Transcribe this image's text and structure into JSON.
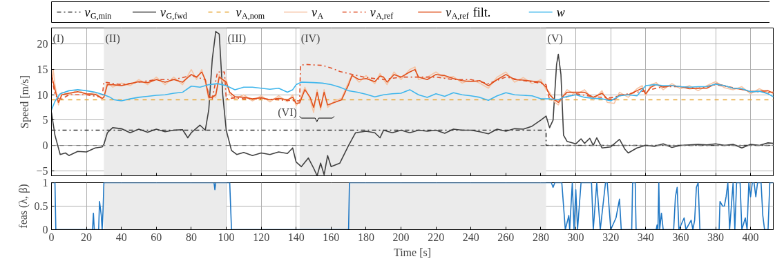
{
  "chart_data": [
    {
      "type": "line",
      "ylabel": "Speed [m/s]",
      "xlim": [
        0,
        413
      ],
      "ylim": [
        -6,
        23.2
      ],
      "xticks": [
        0,
        20,
        40,
        60,
        80,
        100,
        120,
        140,
        160,
        180,
        200,
        220,
        240,
        260,
        280,
        300,
        320,
        340,
        360,
        380,
        400
      ],
      "yticks": [
        -5,
        0,
        5,
        10,
        15,
        20
      ],
      "tick_labels": "y",
      "grid": true,
      "legend": "top",
      "bands": [
        {
          "axis": "x",
          "from": 30,
          "to": 100,
          "color": "#ebebeb",
          "label": "(II)"
        },
        {
          "axis": "x",
          "from": 142,
          "to": 283,
          "color": "#ebebeb",
          "label": "(IV)"
        }
      ],
      "ref_lines": [
        {
          "axis": "y",
          "value": 0,
          "color": "#777777",
          "line_style": "dashed"
        }
      ],
      "annotations": [
        "(I)",
        "(III)",
        "(V)",
        "(VI)"
      ],
      "series": [
        {
          "name": "v$_{G,min}$",
          "color": "#333333",
          "line_style": "dashdot",
          "x": [
            0,
            283,
            283,
            413
          ],
          "values": [
            3,
            3,
            0,
            0
          ]
        },
        {
          "name": "v$_{G,fwd}$",
          "color": "#404040",
          "line_style": "solid",
          "x": [
            0,
            2,
            5,
            8,
            10,
            15,
            20,
            25,
            29,
            30,
            32,
            35,
            40,
            45,
            50,
            55,
            60,
            65,
            70,
            75,
            78,
            80,
            85,
            88,
            90,
            92,
            94,
            96,
            98,
            100,
            103,
            106,
            110,
            115,
            120,
            125,
            130,
            135,
            138,
            140,
            143,
            147,
            150,
            152,
            154,
            156,
            158,
            160,
            165,
            170,
            174,
            180,
            185,
            188,
            190,
            195,
            200,
            205,
            210,
            215,
            220,
            225,
            230,
            235,
            240,
            245,
            250,
            255,
            260,
            265,
            270,
            275,
            280,
            283,
            285,
            287,
            289,
            290,
            291.5,
            293,
            295,
            300,
            303,
            305,
            308,
            310,
            312,
            315,
            320,
            325,
            328,
            330,
            335,
            340,
            345,
            350,
            355,
            360,
            365,
            370,
            375,
            380,
            385,
            390,
            395,
            400,
            405,
            410,
            413
          ],
          "values": [
            6.5,
            2,
            -1.8,
            -1.5,
            -2,
            -1.2,
            -1.3,
            -0.5,
            -0.3,
            0.2,
            2.5,
            3.5,
            3.3,
            2.5,
            3.2,
            2.6,
            3.2,
            2.7,
            3,
            3.1,
            1.5,
            2.5,
            4,
            3,
            7,
            17,
            22.5,
            22,
            10,
            3,
            -1,
            -1.8,
            -1.4,
            -2,
            -1.5,
            -1.8,
            -1.3,
            -1.6,
            -0.5,
            -3.3,
            -4.2,
            -2.5,
            -4.5,
            -6,
            -3.5,
            -5.8,
            -2,
            -4.2,
            -3.5,
            0,
            2.5,
            2.8,
            2.5,
            1.5,
            3,
            2.5,
            3,
            2.5,
            3,
            2.8,
            3,
            2.4,
            3.2,
            3,
            3,
            2.7,
            2.3,
            3.2,
            2.8,
            3.3,
            3.2,
            3.8,
            5,
            5.8,
            3.5,
            5,
            16,
            18,
            14,
            2,
            0.8,
            0.3,
            1.3,
            0.4,
            1.4,
            0,
            1.5,
            -0.5,
            -0.3,
            1.2,
            -0.7,
            -1.5,
            -0.5,
            0,
            -0.2,
            0.3,
            -0.4,
            0,
            0.1,
            0.2,
            0.1,
            0.3,
            0,
            0.2,
            -0.5,
            0.2,
            0,
            0.5,
            0.4
          ]
        },
        {
          "name": "v$_{A,nom}$",
          "color": "#e8a838",
          "line_style": "dashed",
          "x": [
            0,
            413
          ],
          "values": [
            9,
            9
          ]
        },
        {
          "name": "v$_{A}$",
          "color": "#f6c4a4",
          "line_style": "solid",
          "x": [
            0,
            1,
            2,
            4,
            6,
            10,
            15,
            20,
            25,
            29,
            30,
            32,
            35,
            40,
            45,
            50,
            55,
            60,
            65,
            70,
            75,
            80,
            83,
            86,
            88,
            90,
            92,
            94,
            96,
            98,
            100,
            102,
            105,
            110,
            115,
            120,
            125,
            130,
            135,
            138,
            140,
            142,
            145,
            148,
            150,
            152,
            154,
            156,
            158,
            162,
            166,
            170,
            172,
            176,
            180,
            185,
            188,
            190,
            192,
            196,
            200,
            205,
            208,
            210,
            215,
            220,
            225,
            230,
            235,
            240,
            245,
            250,
            255,
            260,
            265,
            270,
            275,
            280,
            283,
            285,
            288,
            290,
            293,
            295,
            300,
            305,
            310,
            315,
            318,
            322,
            325,
            330,
            335,
            338,
            340,
            343,
            346,
            350,
            355,
            360,
            365,
            370,
            375,
            380,
            385,
            390,
            395,
            400,
            405,
            410,
            413
          ],
          "values": [
            13,
            15,
            12,
            8,
            10.5,
            10,
            11,
            10,
            10.5,
            9,
            9.8,
            12.5,
            11.5,
            12.3,
            11.8,
            13,
            12,
            13.5,
            12,
            13.5,
            12,
            15,
            13,
            15,
            12.5,
            9,
            9.8,
            9.5,
            14,
            12.5,
            13,
            10,
            9.2,
            10,
            8.8,
            9.8,
            8.6,
            9.8,
            8.6,
            10,
            7.8,
            8.9,
            11.5,
            9,
            6.5,
            11,
            7,
            11,
            7.5,
            8.8,
            9.3,
            12.5,
            14,
            12.5,
            13.8,
            12.2,
            14.2,
            13,
            12,
            14.5,
            13,
            15,
            15.5,
            13,
            13.5,
            14.5,
            13.3,
            13.6,
            12.3,
            13,
            12.3,
            11.3,
            13.5,
            14.5,
            12.5,
            13.4,
            12.2,
            13,
            11,
            10.5,
            8.5,
            8,
            10,
            11,
            10,
            11,
            9,
            10.8,
            8.5,
            8.3,
            10.5,
            9.5,
            11.2,
            11.8,
            9.8,
            12,
            12.4,
            11,
            12.2,
            11.2,
            11.8,
            10.8,
            11.8,
            12.6,
            11.4,
            11,
            11.6,
            10.2,
            11.2,
            10.4,
            10.6
          ]
        },
        {
          "name": "v$_{A,ref}$",
          "color": "#e0502a",
          "line_style": "dashdot",
          "x": [
            0,
            2,
            5,
            10,
            20,
            29,
            30,
            40,
            50,
            60,
            70,
            80,
            88,
            90,
            92,
            95,
            99,
            100,
            105,
            110,
            120,
            130,
            140,
            142,
            142.5,
            145,
            155,
            160,
            165,
            170,
            175,
            180,
            190,
            200,
            210,
            220,
            230,
            240,
            250,
            260,
            270,
            280,
            283,
            285,
            290,
            300,
            310,
            320,
            330,
            340,
            350,
            360,
            370,
            380,
            390,
            400,
            413
          ],
          "values": [
            14,
            10,
            9,
            10,
            10,
            9.5,
            12.5,
            12,
            12.5,
            13,
            13,
            13.8,
            13,
            10,
            9.2,
            14.5,
            14.5,
            9.2,
            9.4,
            9.2,
            9.2,
            9,
            8.8,
            8.8,
            15.8,
            16,
            15.8,
            15.3,
            14.6,
            14.2,
            13.8,
            13.4,
            13,
            13.5,
            13.5,
            13.5,
            13,
            13,
            12.2,
            13.5,
            12.8,
            12.3,
            12,
            9,
            9,
            10.2,
            9.6,
            9.4,
            10.2,
            10.8,
            11.6,
            11.6,
            11.3,
            12,
            11.4,
            10.7,
            10.4
          ]
        },
        {
          "name": "v$_{A,ref}$ filt.",
          "color": "#e0501c",
          "line_style": "solid",
          "x": [
            0,
            2,
            4,
            6,
            10,
            15,
            20,
            25,
            29,
            30,
            32,
            35,
            40,
            45,
            50,
            55,
            60,
            65,
            70,
            75,
            80,
            83,
            86,
            88,
            90,
            92,
            94,
            96,
            98,
            100,
            102,
            105,
            110,
            115,
            120,
            125,
            130,
            135,
            138,
            140,
            142,
            145,
            148,
            150,
            152,
            154,
            156,
            158,
            162,
            166,
            170,
            172,
            176,
            180,
            185,
            188,
            190,
            192,
            196,
            200,
            205,
            208,
            210,
            215,
            220,
            225,
            230,
            235,
            240,
            245,
            250,
            255,
            260,
            265,
            270,
            275,
            280,
            283,
            285,
            288,
            290,
            293,
            295,
            300,
            305,
            310,
            315,
            318,
            322,
            325,
            330,
            335,
            338,
            340,
            343,
            346,
            350,
            355,
            360,
            365,
            370,
            375,
            380,
            385,
            390,
            395,
            400,
            405,
            410,
            413
          ],
          "values": [
            14,
            11,
            8.5,
            10,
            10.3,
            10.6,
            10.2,
            10.1,
            9.3,
            9.5,
            12,
            12,
            11.8,
            12.2,
            12.6,
            12.4,
            13,
            12.5,
            13,
            12.5,
            14,
            13.5,
            14.5,
            13,
            9.5,
            9.5,
            10,
            13.5,
            13,
            12.5,
            10.5,
            9.6,
            9.5,
            9.2,
            9.4,
            9,
            9.3,
            9,
            9.5,
            8.3,
            8.4,
            11,
            9.5,
            7.5,
            10.5,
            7.5,
            10.5,
            8,
            8.5,
            9,
            12,
            13.8,
            13,
            13.2,
            12.6,
            13.7,
            13.5,
            12.5,
            14,
            13.5,
            14.5,
            15,
            13.5,
            13,
            14,
            13.8,
            13.2,
            12.8,
            12.6,
            12.8,
            11.8,
            13,
            14,
            13,
            12.9,
            12.7,
            12.5,
            11.5,
            10,
            9,
            8.5,
            9.8,
            10.5,
            10.5,
            10.5,
            9.5,
            10.3,
            9.2,
            9,
            10,
            10,
            10.8,
            11.3,
            10.2,
            11.5,
            12,
            11.5,
            11.8,
            11.6,
            11.2,
            11.3,
            11.3,
            12.2,
            11.8,
            11.3,
            11.1,
            10.6,
            10.7,
            10.8,
            10.3
          ]
        },
        {
          "name": "w",
          "color": "#3fb6ec",
          "line_style": "solid",
          "x": [
            0,
            2,
            5,
            10,
            15,
            20,
            25,
            30,
            33,
            36,
            40,
            45,
            50,
            55,
            60,
            65,
            70,
            75,
            80,
            85,
            90,
            95,
            100,
            105,
            110,
            115,
            120,
            125,
            130,
            135,
            138,
            140,
            143,
            150,
            155,
            160,
            165,
            170,
            175,
            180,
            185,
            190,
            195,
            200,
            205,
            210,
            215,
            220,
            225,
            230,
            235,
            240,
            245,
            250,
            255,
            260,
            265,
            270,
            275,
            280,
            285,
            290,
            293,
            300,
            305,
            310,
            315,
            320,
            325,
            330,
            335,
            340,
            345,
            350,
            355,
            360,
            365,
            370,
            375,
            380,
            385,
            390,
            395,
            400,
            405,
            410,
            413
          ],
          "values": [
            7,
            8.7,
            10.2,
            10.8,
            11,
            10.8,
            10.5,
            10,
            9.6,
            9,
            8.8,
            9.2,
            9.5,
            9.7,
            9.9,
            10,
            10.3,
            10.5,
            11.7,
            11.5,
            12,
            12.2,
            11.8,
            11,
            11.5,
            11.5,
            11.3,
            11.1,
            11.3,
            10.5,
            11,
            12,
            12.5,
            12.4,
            12.3,
            12,
            11.5,
            10.8,
            10.5,
            10.1,
            9.6,
            10,
            10.2,
            10.3,
            11,
            10,
            9.5,
            10.2,
            9.7,
            10.4,
            10,
            9.8,
            9.5,
            8.9,
            9.8,
            10.4,
            10,
            9.9,
            9.8,
            9.2,
            9.2,
            9,
            9.5,
            10,
            9.5,
            9.3,
            9.2,
            8.8,
            9.8,
            10,
            9.8,
            11.8,
            12,
            11.8,
            11.8,
            11.6,
            11.5,
            11.6,
            11.6,
            12.1,
            11.8,
            11.3,
            11.2,
            10.6,
            10.7,
            10.2,
            9.6
          ]
        }
      ]
    },
    {
      "type": "line",
      "xlabel": "Time [s]",
      "ylabel": "feas (λ, β)",
      "xlim": [
        0,
        413
      ],
      "ylim": [
        0,
        1
      ],
      "xticks": [
        0,
        20,
        40,
        60,
        80,
        100,
        120,
        140,
        160,
        180,
        200,
        220,
        240,
        260,
        280,
        300,
        320,
        340,
        360,
        380,
        400
      ],
      "yticks": [
        0,
        0.5,
        1
      ],
      "grid": true,
      "bands": [
        {
          "axis": "x",
          "from": 30,
          "to": 100,
          "color": "#ebebeb"
        },
        {
          "axis": "x",
          "from": 142,
          "to": 283,
          "color": "#ebebeb"
        }
      ],
      "series": [
        {
          "color": "#1f77c4",
          "line_style": "solid",
          "x": [
            0,
            2,
            2.5,
            23.5,
            24,
            24.5,
            27,
            27.5,
            28.5,
            29,
            29.5,
            30,
            93,
            93.5,
            94,
            102,
            103,
            170,
            170.5,
            286,
            287,
            288,
            292,
            293,
            294,
            296,
            296.5,
            298,
            299,
            300,
            301,
            303,
            309,
            310,
            312,
            314,
            317,
            318,
            320,
            323,
            325,
            326,
            332,
            332.5,
            334,
            334.5,
            346,
            346.5,
            347,
            347.5,
            348,
            349,
            350,
            356,
            357,
            358,
            359,
            362,
            363,
            366,
            367,
            368,
            369,
            370,
            371,
            382,
            382.5,
            384,
            385,
            386,
            387,
            388,
            390,
            391,
            392,
            394,
            395,
            397,
            398,
            399,
            400,
            401,
            402,
            403,
            404,
            406,
            407,
            408,
            410,
            411,
            413
          ],
          "values": [
            1,
            1,
            0,
            0,
            0.35,
            0,
            0,
            0.6,
            0.3,
            0,
            0.4,
            1,
            1,
            0.85,
            1,
            1,
            0,
            0,
            1,
            1,
            0.9,
            1,
            1,
            0.5,
            0,
            0.3,
            0,
            1,
            0,
            0.85,
            0,
            1,
            1,
            0,
            1,
            0,
            1,
            1,
            0,
            0.25,
            0.65,
            0,
            0,
            1,
            1,
            0,
            0,
            0.1,
            0,
            1,
            0,
            0.35,
            0,
            0,
            0.7,
            0.9,
            0,
            0.25,
            0,
            0.2,
            0,
            0.2,
            0.9,
            1,
            0,
            0,
            0.6,
            0.5,
            0.5,
            0.7,
            1,
            0,
            1,
            0,
            1,
            1,
            0,
            0.25,
            0,
            1,
            0.7,
            1,
            1,
            0.7,
            1,
            1,
            0.3,
            0,
            0,
            1,
            1
          ]
        }
      ]
    }
  ]
}
